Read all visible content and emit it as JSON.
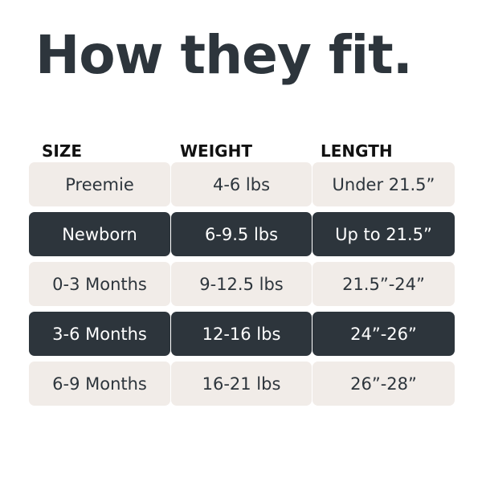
{
  "title": "How they fit.",
  "headers": [
    "SIZE",
    "WEIGHT",
    "LENGTH"
  ],
  "rows": [
    {
      "style": "light",
      "cells": [
        "Preemie",
        "4-6 lbs",
        "Under 21.5”"
      ]
    },
    {
      "style": "dark",
      "cells": [
        "Newborn",
        "6-9.5 lbs",
        "Up to 21.5”"
      ]
    },
    {
      "style": "light",
      "cells": [
        "0-3 Months",
        "9-12.5 lbs",
        "21.5”-24”"
      ]
    },
    {
      "style": "dark",
      "cells": [
        "3-6 Months",
        "12-16 lbs",
        "24”-26”"
      ]
    },
    {
      "style": "light",
      "cells": [
        "6-9 Months",
        "16-21 lbs",
        "26”-28”"
      ]
    }
  ],
  "colors": {
    "dark": "#2d353c",
    "light": "#f1ece8"
  }
}
